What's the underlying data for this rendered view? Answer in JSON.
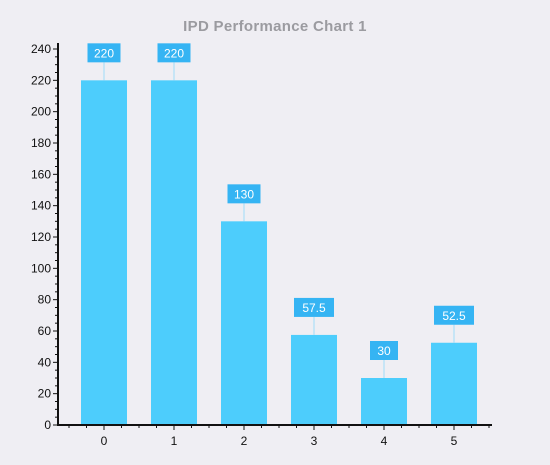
{
  "chart_data": {
    "type": "bar",
    "title": "IPD Performance Chart 1",
    "xlabel": "",
    "ylabel": "",
    "categories": [
      "0",
      "1",
      "2",
      "3",
      "4",
      "5"
    ],
    "values": [
      220,
      220,
      130,
      57.5,
      30,
      52.5
    ],
    "data_labels": [
      "220",
      "220",
      "130",
      "57.5",
      "30",
      "52.5"
    ],
    "ylim": [
      0,
      240
    ],
    "yticks": [
      "0",
      "20",
      "40",
      "60",
      "80",
      "100",
      "120",
      "140",
      "160",
      "180",
      "200",
      "220",
      "240"
    ],
    "grid": false,
    "legend": "none",
    "colors": {
      "bar": "#4dcdfc",
      "label_bg": "#35b4f3",
      "label_text": "#ffffff",
      "axis": "#111111",
      "background": "#efeef3",
      "title": "#9b9ba0"
    }
  }
}
